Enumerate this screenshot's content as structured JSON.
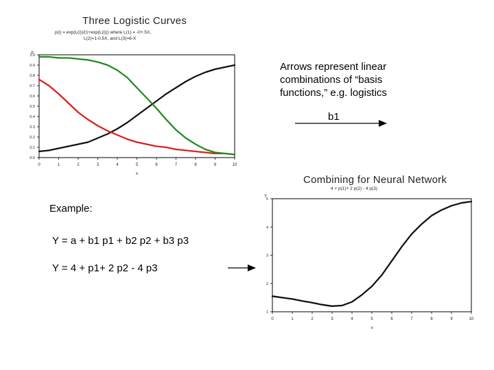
{
  "annotations": {
    "note_lines": [
      "Arrows represent linear",
      "combinations of “basis",
      "functions,” e.g. logistics"
    ],
    "arrow_label": "b1",
    "example_heading": "Example:",
    "equation_general": "Y = a + b1 p1 + b2 p2 + b3 p3",
    "equation_specific": "Y = 4 + p1+ 2 p2 - 4 p3"
  },
  "chart_data": [
    {
      "type": "line",
      "title": "Three Logistic Curves",
      "subtitle_lines": [
        "p(i) = exp(L(i))/(1+exp(L(i))) where L(1) = -0+.5X,",
        "L(2)=1-0.5X, and L(3)=6-X"
      ],
      "ylabel": "p",
      "xlabel": "x",
      "xlim": [
        0,
        10
      ],
      "ylim": [
        0,
        1
      ],
      "xticks": [
        "0",
        "1",
        "2",
        "3",
        "4",
        "5",
        "6",
        "7",
        "8",
        "9",
        "10"
      ],
      "yticks": [
        "0.0",
        "0.1",
        "0.2",
        "0.3",
        "0.4",
        "0.5",
        "0.6",
        "0.7",
        "0.8",
        "0.9",
        "1.0"
      ],
      "x": [
        0,
        0.5,
        1,
        1.5,
        2,
        2.5,
        3,
        3.5,
        4,
        4.5,
        5,
        5.5,
        6,
        6.5,
        7,
        7.5,
        8,
        8.5,
        9,
        9.5,
        10
      ],
      "series": [
        {
          "color": "#111111",
          "values": [
            0.06,
            0.07,
            0.09,
            0.11,
            0.13,
            0.15,
            0.19,
            0.23,
            0.28,
            0.34,
            0.41,
            0.48,
            0.55,
            0.62,
            0.68,
            0.74,
            0.79,
            0.83,
            0.86,
            0.88,
            0.9
          ]
        },
        {
          "color": "#dd1f1f",
          "values": [
            0.76,
            0.7,
            0.62,
            0.53,
            0.44,
            0.37,
            0.31,
            0.26,
            0.22,
            0.18,
            0.15,
            0.13,
            0.11,
            0.1,
            0.08,
            0.07,
            0.06,
            0.05,
            0.04,
            0.04,
            0.03
          ]
        },
        {
          "color": "#1e8c1e",
          "values": [
            0.98,
            0.98,
            0.97,
            0.97,
            0.96,
            0.95,
            0.93,
            0.9,
            0.85,
            0.78,
            0.68,
            0.58,
            0.48,
            0.37,
            0.27,
            0.19,
            0.13,
            0.08,
            0.05,
            0.04,
            0.03
          ]
        }
      ]
    },
    {
      "type": "line",
      "title": "Combining for Neural Network",
      "subtitle": "4 + p(1)+ 2 p(2) - 4 p(3)",
      "ylabel": "Y",
      "xlabel": "x",
      "xlim": [
        0,
        10
      ],
      "ylim": [
        1,
        5
      ],
      "xticks": [
        "0",
        "1",
        "2",
        "3",
        "4",
        "5",
        "6",
        "7",
        "8",
        "9",
        "10"
      ],
      "yticks": [
        "1",
        "2",
        "3",
        "4",
        "5"
      ],
      "x": [
        0,
        0.5,
        1,
        1.5,
        2,
        2.5,
        3,
        3.5,
        4,
        4.5,
        5,
        5.5,
        6,
        6.5,
        7,
        7.5,
        8,
        8.5,
        9,
        9.5,
        10
      ],
      "series": [
        {
          "color": "#111111",
          "values": [
            1.55,
            1.5,
            1.45,
            1.38,
            1.32,
            1.25,
            1.2,
            1.22,
            1.35,
            1.6,
            1.9,
            2.3,
            2.8,
            3.3,
            3.75,
            4.1,
            4.4,
            4.6,
            4.75,
            4.85,
            4.9
          ]
        }
      ]
    }
  ]
}
